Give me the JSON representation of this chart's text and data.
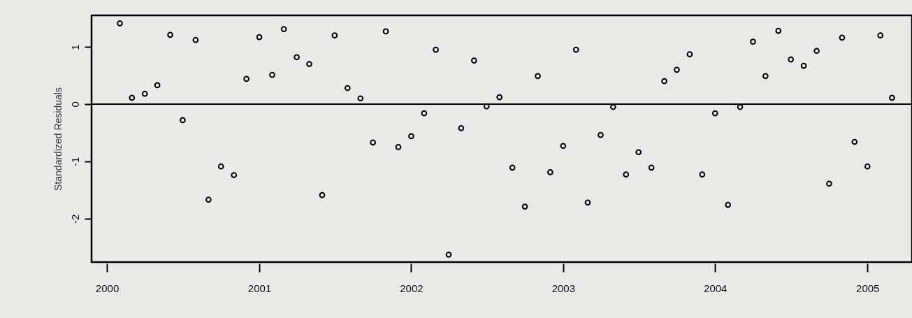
{
  "chart_data": {
    "type": "scatter",
    "ylabel": "Standardized Residuals",
    "x": [
      "2000-02",
      "2000-03",
      "2000-04",
      "2000-05",
      "2000-06",
      "2000-07",
      "2000-08",
      "2000-09",
      "2000-10",
      "2000-11",
      "2000-12",
      "2001-01",
      "2001-02",
      "2001-03",
      "2001-04",
      "2001-05",
      "2001-06",
      "2001-07",
      "2001-08",
      "2001-09",
      "2001-10",
      "2001-11",
      "2001-12",
      "2002-01",
      "2002-02",
      "2002-03",
      "2002-04",
      "2002-05",
      "2002-06",
      "2002-07",
      "2002-08",
      "2002-09",
      "2002-10",
      "2002-11",
      "2002-12",
      "2003-01",
      "2003-02",
      "2003-03",
      "2003-04",
      "2003-05",
      "2003-06",
      "2003-07",
      "2003-08",
      "2003-09",
      "2003-10",
      "2003-11",
      "2003-12",
      "2004-01",
      "2004-02",
      "2004-03",
      "2004-04",
      "2004-05",
      "2004-06",
      "2004-07",
      "2004-08",
      "2004-09",
      "2004-10",
      "2004-11",
      "2004-12",
      "2005-01",
      "2005-02",
      "2005-03"
    ],
    "series": [
      {
        "color": "#000000",
        "values": [
          1.41,
          0.11,
          0.18,
          0.33,
          1.21,
          -0.28,
          1.12,
          -1.67,
          -1.09,
          -1.24,
          0.44,
          1.17,
          0.51,
          1.31,
          0.82,
          0.7,
          -1.59,
          1.2,
          0.28,
          0.1,
          -0.67,
          1.27,
          -0.75,
          -0.56,
          -0.16,
          0.95,
          -2.63,
          -0.42,
          0.76,
          -0.04,
          0.12,
          -1.11,
          -1.79,
          0.49,
          -1.19,
          -0.73,
          0.95,
          -1.72,
          -0.54,
          -0.05,
          -1.23,
          -0.84,
          -1.11,
          0.4,
          0.6,
          0.87,
          -1.23,
          -0.16,
          -1.76,
          -0.05,
          1.09,
          0.49,
          1.28,
          0.78,
          0.67,
          0.93,
          -1.39,
          1.16,
          -0.66,
          -1.09,
          1.2,
          0.11
        ]
      }
    ],
    "xlim": [
      "1999-11-25",
      "2005-04-18"
    ],
    "xticks": [
      "2000",
      "2001",
      "2002",
      "2003",
      "2004",
      "2005"
    ],
    "ylim": [
      -2.76,
      1.55
    ],
    "yticks": [
      -2,
      -1,
      0,
      1
    ],
    "ref_lines": [
      {
        "axis": "y",
        "value": 0,
        "color": "#000000"
      }
    ],
    "grid": false,
    "marker": "circle"
  }
}
